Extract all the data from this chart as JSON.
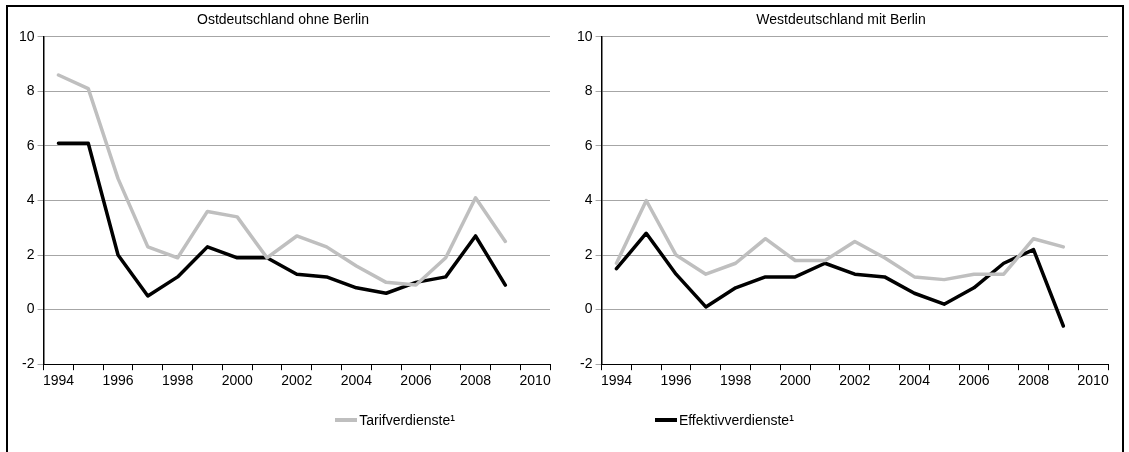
{
  "chart_data": [
    {
      "type": "line",
      "title": "Ostdeutschland ohne Berlin",
      "categories": [
        "1994",
        null,
        "1996",
        null,
        "1998",
        null,
        "2000",
        null,
        "2002",
        null,
        "2004",
        null,
        "2006",
        null,
        "2008",
        null,
        "2010"
      ],
      "series": [
        {
          "name": "Tarifverdienste¹",
          "color": "#bfbfbf",
          "values": [
            8.6,
            8.1,
            4.8,
            2.3,
            1.9,
            3.6,
            3.4,
            1.9,
            2.7,
            2.3,
            1.6,
            1.0,
            0.9,
            1.9,
            4.1,
            2.5,
            null
          ]
        },
        {
          "name": "Effektivverdienste¹",
          "color": "#000000",
          "values": [
            6.1,
            6.1,
            2.0,
            0.5,
            1.2,
            2.3,
            1.9,
            1.9,
            1.3,
            1.2,
            0.8,
            0.6,
            1.0,
            1.2,
            2.7,
            0.9,
            null
          ]
        }
      ],
      "ylim": [
        -2,
        10
      ],
      "yticks": [
        -2,
        0,
        2,
        4,
        6,
        8,
        10
      ],
      "grid": "y",
      "legend": "bottom",
      "marker": "none",
      "line_style": "solid"
    },
    {
      "type": "line",
      "title": "Westdeutschland mit Berlin",
      "categories": [
        "1994",
        null,
        "1996",
        null,
        "1998",
        null,
        "2000",
        null,
        "2002",
        null,
        "2004",
        null,
        "2006",
        null,
        "2008",
        null,
        "2010"
      ],
      "series": [
        {
          "name": "Tarifverdienste¹",
          "color": "#bfbfbf",
          "values": [
            1.7,
            4.0,
            2.0,
            1.3,
            1.7,
            2.6,
            1.8,
            1.8,
            2.5,
            1.9,
            1.2,
            1.1,
            1.3,
            1.3,
            2.6,
            2.3,
            null
          ]
        },
        {
          "name": "Effektivverdienste¹",
          "color": "#000000",
          "values": [
            1.5,
            2.8,
            1.3,
            0.1,
            0.8,
            1.2,
            1.2,
            1.7,
            1.3,
            1.2,
            0.6,
            0.2,
            0.8,
            1.7,
            2.2,
            -0.6,
            null
          ]
        }
      ],
      "ylim": [
        -2,
        10
      ],
      "yticks": [
        -2,
        0,
        2,
        4,
        6,
        8,
        10
      ],
      "grid": "y",
      "legend": "bottom",
      "marker": "none",
      "line_style": "solid"
    }
  ]
}
